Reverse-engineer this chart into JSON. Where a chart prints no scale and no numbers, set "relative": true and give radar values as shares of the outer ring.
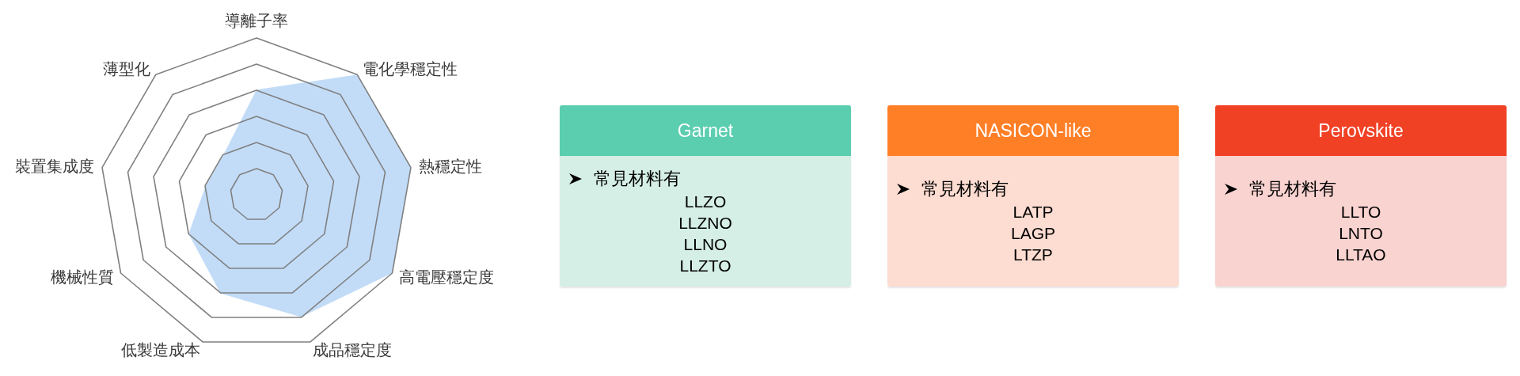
{
  "chart_data": [
    {
      "type": "radar",
      "categories": [
        "導離子率",
        "電化學穩定性",
        "熱穩定性",
        "高電壓穩定度",
        "成品穩定度",
        "低製造成本",
        "機械性質",
        "裝置集成度",
        "薄型化"
      ],
      "relative": true,
      "grid": true,
      "series": [
        {
          "color": "#c2dcf8",
          "values": [
            0.67,
            1,
            1,
            1,
            0.83,
            0.67,
            0.5,
            0.33,
            0.33
          ]
        }
      ]
    },
    {
      "type": "other",
      "title": "Garnet",
      "colors": [
        "#5bceaf",
        "#d5efe6"
      ],
      "annotations": [
        "常見材料有",
        "LLZO",
        "LLZNO",
        "LLNO",
        "LLZTO"
      ]
    },
    {
      "type": "other",
      "title": "NASICON-like",
      "colors": [
        "#ff7f27",
        "#fddcd1"
      ],
      "annotations": [
        "常見材料有",
        "LATP",
        "LAGP",
        "LTZP"
      ]
    },
    {
      "type": "other",
      "title": "Perovskite",
      "colors": [
        "#f04125",
        "#f9d3d0"
      ],
      "annotations": [
        "常見材料有",
        "LLTO",
        "LNTO",
        "LLTAO"
      ]
    }
  ]
}
